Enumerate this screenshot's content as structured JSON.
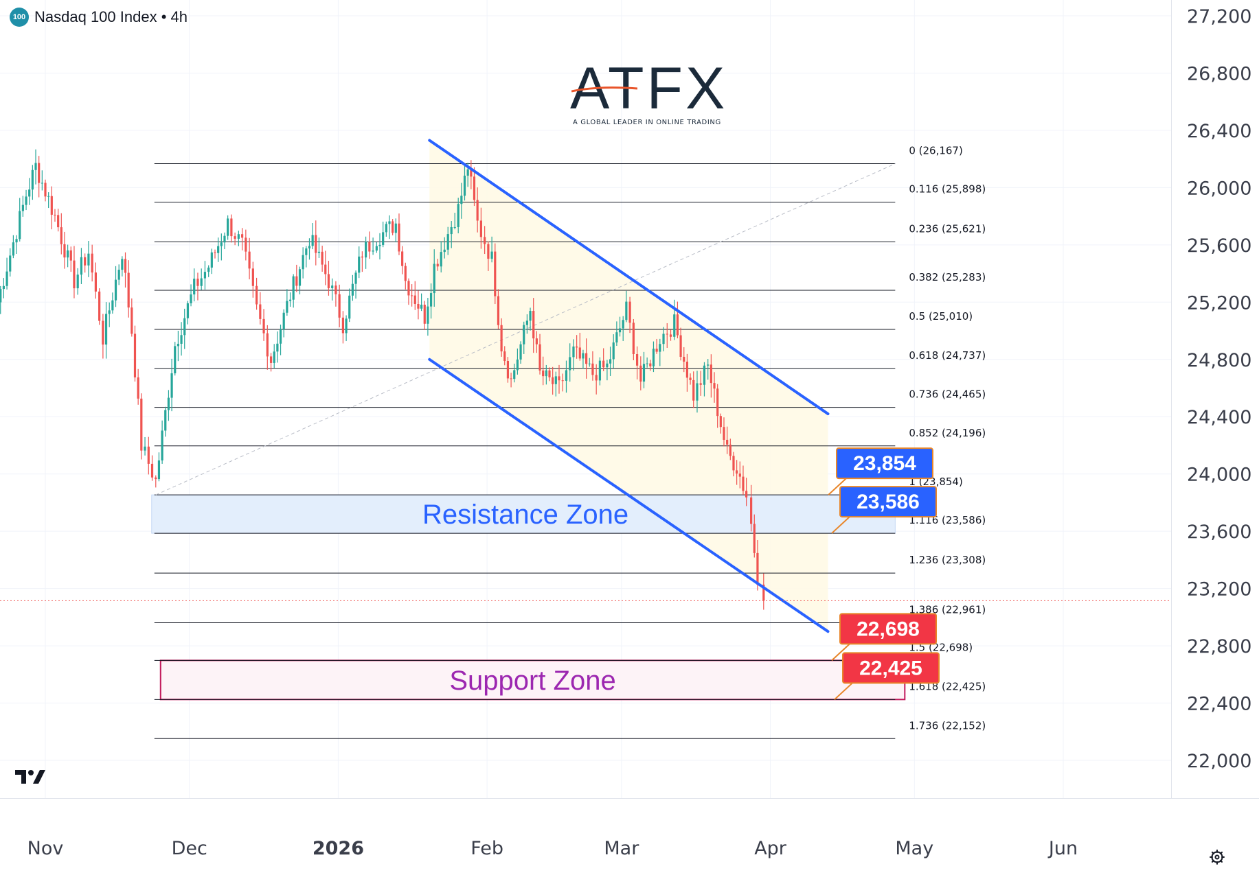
{
  "header": {
    "badge": "100",
    "title": "Nasdaq 100 Index • 4h"
  },
  "logo": {
    "text": "ATFX",
    "tagline": "A GLOBAL LEADER IN ONLINE TRADING",
    "accent_color": "#e8542a"
  },
  "icons": {
    "tradingview": "tradingview-logo-icon",
    "settings": "gear-icon"
  },
  "colors": {
    "bull": "#26a69a",
    "bear": "#ef5350",
    "channel": "#2962ff",
    "fib_line": "#131722",
    "resistance_fill": "#e3eefc",
    "support_fill": "#fdf3f7",
    "support_border": "#c2185b",
    "resistance_text": "#2962ff",
    "support_text": "#9c27b0",
    "price_blue": "#2962ff",
    "price_red": "#f23645"
  },
  "chart_data": {
    "type": "candlestick",
    "title": "Nasdaq 100 Index • 4h",
    "ylim": [
      21800,
      27400
    ],
    "y_ticks": [
      {
        "value": 27200,
        "label": "27,200"
      },
      {
        "value": 26800,
        "label": "26,800"
      },
      {
        "value": 26400,
        "label": "26,400"
      },
      {
        "value": 26000,
        "label": "26,000"
      },
      {
        "value": 25600,
        "label": "25,600"
      },
      {
        "value": 25200,
        "label": "25,200"
      },
      {
        "value": 24800,
        "label": "24,800"
      },
      {
        "value": 24400,
        "label": "24,400"
      },
      {
        "value": 24000,
        "label": "24,000"
      },
      {
        "value": 23600,
        "label": "23,600"
      },
      {
        "value": 23200,
        "label": "23,200"
      },
      {
        "value": 22800,
        "label": "22,800"
      },
      {
        "value": 22400,
        "label": "22,400"
      },
      {
        "value": 22000,
        "label": "22,000"
      }
    ],
    "x_range": [
      "2025-10-22",
      "2026-06-12"
    ],
    "x_ticks": [
      {
        "date": "2025-11-01",
        "label": "Nov",
        "bold": false
      },
      {
        "date": "2025-12-01",
        "label": "Dec",
        "bold": false
      },
      {
        "date": "2026-01-01",
        "label": "2026",
        "bold": true
      },
      {
        "date": "2026-02-01",
        "label": "Feb",
        "bold": false
      },
      {
        "date": "2026-03-01",
        "label": "Mar",
        "bold": false
      },
      {
        "date": "2026-04-01",
        "label": "Apr",
        "bold": false
      },
      {
        "date": "2026-05-01",
        "label": "May",
        "bold": false
      },
      {
        "date": "2026-06-01",
        "label": "Jun",
        "bold": false
      }
    ],
    "grid": true,
    "current_price": 23115,
    "fibonacci": {
      "start_date": "2025-11-24",
      "end_date": "2026-04-27",
      "anchor_low": {
        "date": "2025-11-24",
        "value": 23854
      },
      "anchor_high": {
        "date": "2026-04-27",
        "value": 26167
      },
      "levels": [
        {
          "ratio": "0",
          "value": 26167,
          "label": "0 (26,167)"
        },
        {
          "ratio": "0.116",
          "value": 25898,
          "label": "0.116 (25,898)"
        },
        {
          "ratio": "0.236",
          "value": 25621,
          "label": "0.236 (25,621)"
        },
        {
          "ratio": "0.382",
          "value": 25283,
          "label": "0.382 (25,283)"
        },
        {
          "ratio": "0.5",
          "value": 25010,
          "label": "0.5 (25,010)"
        },
        {
          "ratio": "0.618",
          "value": 24737,
          "label": "0.618 (24,737)"
        },
        {
          "ratio": "0.736",
          "value": 24465,
          "label": "0.736 (24,465)"
        },
        {
          "ratio": "0.852",
          "value": 24196,
          "label": "0.852 (24,196)"
        },
        {
          "ratio": "1",
          "value": 23854,
          "label": "1 (23,854)"
        },
        {
          "ratio": "1.116",
          "value": 23586,
          "label": "1.116 (23,586)"
        },
        {
          "ratio": "1.236",
          "value": 23308,
          "label": "1.236 (23,308)"
        },
        {
          "ratio": "1.386",
          "value": 22961,
          "label": "1.386 (22,961)"
        },
        {
          "ratio": "1.5",
          "value": 22698,
          "label": "1.5 (22,698)"
        },
        {
          "ratio": "1.618",
          "value": 22425,
          "label": "1.618 (22,425)"
        },
        {
          "ratio": "1.736",
          "value": 22152,
          "label": "1.736 (22,152)"
        }
      ]
    },
    "channel": {
      "upper": [
        {
          "date": "2026-01-20",
          "value": 26330
        },
        {
          "date": "2026-04-13",
          "value": 24420
        }
      ],
      "lower": [
        {
          "date": "2026-01-20",
          "value": 24800
        },
        {
          "date": "2026-04-13",
          "value": 22900
        }
      ],
      "fill_color": "#fff9e6"
    },
    "zones": [
      {
        "name": "resistance",
        "label": "Resistance Zone",
        "top": 23854,
        "bottom": 23586,
        "start_date": "2025-11-24",
        "end_date": "2026-04-27"
      },
      {
        "name": "support",
        "label": "Support Zone",
        "top": 22698,
        "bottom": 22425,
        "start_date": "2025-11-25",
        "end_date": "2026-04-29"
      }
    ],
    "price_labels": [
      {
        "value": 23854,
        "label": "23,854",
        "color": "blue"
      },
      {
        "value": 23586,
        "label": "23,586",
        "color": "blue"
      },
      {
        "value": 22698,
        "label": "22,698",
        "color": "red"
      },
      {
        "value": 22425,
        "label": "22,425",
        "color": "red"
      }
    ],
    "waypoints": [
      {
        "date": "2025-10-22",
        "value": 25200
      },
      {
        "date": "2025-10-28",
        "value": 25950
      },
      {
        "date": "2025-10-30",
        "value": 26150
      },
      {
        "date": "2025-11-03",
        "value": 25800
      },
      {
        "date": "2025-11-07",
        "value": 25350
      },
      {
        "date": "2025-11-10",
        "value": 25550
      },
      {
        "date": "2025-11-13",
        "value": 24950
      },
      {
        "date": "2025-11-17",
        "value": 25550
      },
      {
        "date": "2025-11-19",
        "value": 25000
      },
      {
        "date": "2025-11-21",
        "value": 24200
      },
      {
        "date": "2025-11-24",
        "value": 23950
      },
      {
        "date": "2025-11-28",
        "value": 24900
      },
      {
        "date": "2025-12-02",
        "value": 25300
      },
      {
        "date": "2025-12-05",
        "value": 25450
      },
      {
        "date": "2025-12-09",
        "value": 25750
      },
      {
        "date": "2025-12-12",
        "value": 25600
      },
      {
        "date": "2025-12-15",
        "value": 25150
      },
      {
        "date": "2025-12-18",
        "value": 24800
      },
      {
        "date": "2025-12-22",
        "value": 25250
      },
      {
        "date": "2025-12-26",
        "value": 25650
      },
      {
        "date": "2025-12-30",
        "value": 25350
      },
      {
        "date": "2026-01-02",
        "value": 25050
      },
      {
        "date": "2026-01-06",
        "value": 25550
      },
      {
        "date": "2026-01-09",
        "value": 25650
      },
      {
        "date": "2026-01-13",
        "value": 25750
      },
      {
        "date": "2026-01-15",
        "value": 25350
      },
      {
        "date": "2026-01-19",
        "value": 25100
      },
      {
        "date": "2026-01-21",
        "value": 25450
      },
      {
        "date": "2026-01-26",
        "value": 25850
      },
      {
        "date": "2026-01-28",
        "value": 26150
      },
      {
        "date": "2026-01-30",
        "value": 25750
      },
      {
        "date": "2026-02-02",
        "value": 25500
      },
      {
        "date": "2026-02-04",
        "value": 24900
      },
      {
        "date": "2026-02-06",
        "value": 24650
      },
      {
        "date": "2026-02-10",
        "value": 25150
      },
      {
        "date": "2026-02-12",
        "value": 24700
      },
      {
        "date": "2026-02-16",
        "value": 24600
      },
      {
        "date": "2026-02-19",
        "value": 24850
      },
      {
        "date": "2026-02-23",
        "value": 24700
      },
      {
        "date": "2026-02-26",
        "value": 24750
      },
      {
        "date": "2026-03-02",
        "value": 25150
      },
      {
        "date": "2026-03-05",
        "value": 24650
      },
      {
        "date": "2026-03-09",
        "value": 24950
      },
      {
        "date": "2026-03-12",
        "value": 25050
      },
      {
        "date": "2026-03-16",
        "value": 24550
      },
      {
        "date": "2026-03-19",
        "value": 24750
      },
      {
        "date": "2026-03-23",
        "value": 24150
      },
      {
        "date": "2026-03-25",
        "value": 24050
      },
      {
        "date": "2026-03-27",
        "value": 23850
      },
      {
        "date": "2026-03-28",
        "value": 23650
      },
      {
        "date": "2026-03-30",
        "value": 23115
      }
    ]
  }
}
